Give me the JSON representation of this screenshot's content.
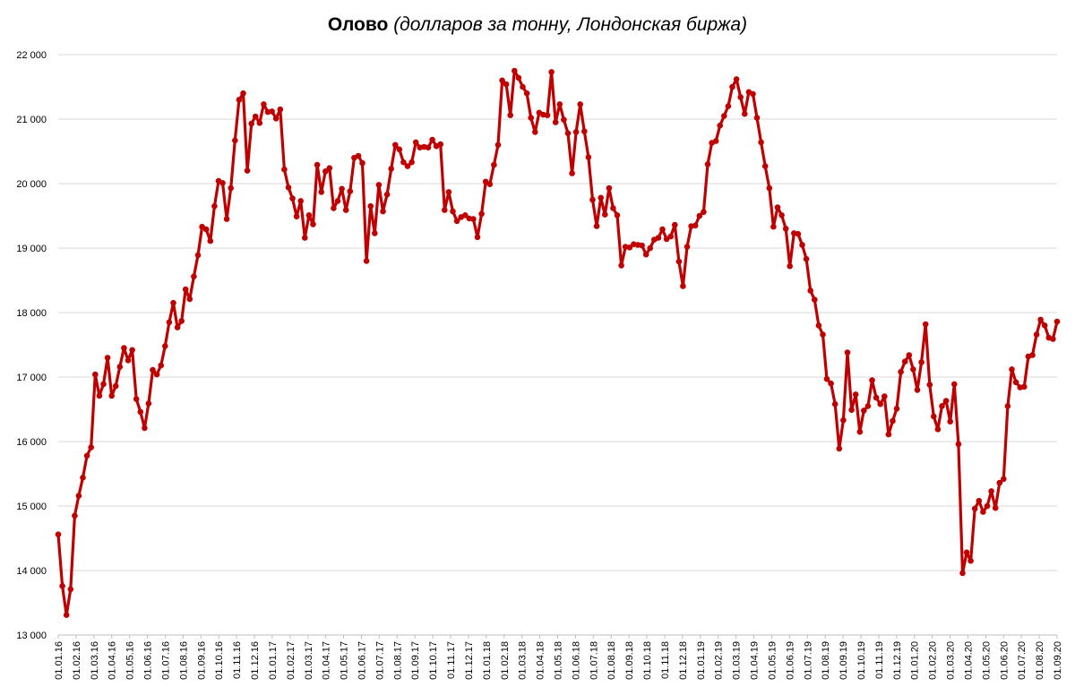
{
  "chart_data": {
    "type": "line",
    "title": "Олово",
    "subtitle": "(долларов за тонну, Лондонская биржа)",
    "ylim": [
      13000,
      22000
    ],
    "grid": true,
    "series_color": "#C00000",
    "y_ticks": [
      {
        "value": 13000,
        "label": "13 000"
      },
      {
        "value": 14000,
        "label": "14 000"
      },
      {
        "value": 15000,
        "label": "15 000"
      },
      {
        "value": 16000,
        "label": "16 000"
      },
      {
        "value": 17000,
        "label": "17 000"
      },
      {
        "value": 18000,
        "label": "18 000"
      },
      {
        "value": 19000,
        "label": "19 000"
      },
      {
        "value": 20000,
        "label": "20 000"
      },
      {
        "value": 21000,
        "label": "21 000"
      },
      {
        "value": 22000,
        "label": "22 000"
      }
    ],
    "x_ticks": [
      "01.01.16",
      "01.02.16",
      "01.03.16",
      "01.04.16",
      "01.05.16",
      "01.06.16",
      "01.07.16",
      "01.08.16",
      "01.09.16",
      "01.10.16",
      "01.11.16",
      "01.12.16",
      "01.01.17",
      "01.02.17",
      "01.03.17",
      "01.04.17",
      "01.05.17",
      "01.06.17",
      "01.07.17",
      "01.08.17",
      "01.09.17",
      "01.10.17",
      "01.11.17",
      "01.12.17",
      "01.01.18",
      "01.02.18",
      "01.03.18",
      "01.04.18",
      "01.05.18",
      "01.06.18",
      "01.07.18",
      "01.08.18",
      "01.09.18",
      "01.10.18",
      "01.11.18",
      "01.12.18",
      "01.01.19",
      "01.02.19",
      "01.03.19",
      "01.04.19",
      "01.05.19",
      "01.06.19",
      "01.07.19",
      "01.08.19",
      "01.09.19",
      "01.10.19",
      "01.11.19",
      "01.12.19",
      "01.01.20",
      "01.02.20",
      "01.03.20",
      "01.04.20",
      "01.05.20",
      "01.06.20",
      "01.07.20",
      "01.08.20",
      "01.09.20"
    ],
    "values": [
      14560,
      13760,
      13310,
      13710,
      14850,
      15160,
      15440,
      15780,
      15910,
      17040,
      16710,
      16890,
      17300,
      16710,
      16860,
      17160,
      17450,
      17260,
      17420,
      16660,
      16460,
      16210,
      16590,
      17110,
      17040,
      17180,
      17480,
      17850,
      18150,
      17770,
      17870,
      18360,
      18210,
      18560,
      18890,
      19330,
      19290,
      19110,
      19650,
      20040,
      20010,
      19450,
      19930,
      20670,
      21300,
      21400,
      20200,
      20930,
      21040,
      20940,
      21230,
      21110,
      21120,
      21010,
      21150,
      20220,
      19940,
      19770,
      19490,
      19730,
      19160,
      19510,
      19370,
      20290,
      19870,
      20190,
      20240,
      19620,
      19730,
      19920,
      19590,
      19880,
      20400,
      20430,
      20320,
      18800,
      19650,
      19230,
      19980,
      19570,
      19830,
      20230,
      20600,
      20530,
      20330,
      20270,
      20330,
      20640,
      20560,
      20570,
      20560,
      20680,
      20580,
      20610,
      19590,
      19870,
      19570,
      19420,
      19480,
      19510,
      19460,
      19450,
      19170,
      19530,
      20030,
      19990,
      20290,
      20600,
      21600,
      21540,
      21060,
      21750,
      21640,
      21500,
      21400,
      21020,
      20800,
      21100,
      21070,
      21060,
      21730,
      20950,
      21230,
      20990,
      20780,
      20160,
      20800,
      21230,
      20810,
      20410,
      19750,
      19340,
      19780,
      19520,
      19930,
      19620,
      19510,
      18730,
      19020,
      19010,
      19060,
      19050,
      19040,
      18900,
      19000,
      19130,
      19160,
      19290,
      19140,
      19180,
      19360,
      18790,
      18410,
      19020,
      19340,
      19350,
      19500,
      19560,
      20300,
      20630,
      20660,
      20900,
      21050,
      21200,
      21500,
      21620,
      21340,
      21080,
      21420,
      21390,
      21020,
      20640,
      20270,
      19930,
      19330,
      19630,
      19510,
      19300,
      18720,
      19230,
      19220,
      19050,
      18830,
      18340,
      18200,
      17800,
      17660,
      16970,
      16900,
      16580,
      15890,
      16330,
      17380,
      16490,
      16730,
      16150,
      16480,
      16550,
      16950,
      16680,
      16580,
      16700,
      16110,
      16320,
      16510,
      17080,
      17240,
      17340,
      17120,
      16800,
      17230,
      17820,
      16880,
      16390,
      16190,
      16550,
      16630,
      16310,
      16890,
      15960,
      13960,
      14280,
      14150,
      14960,
      15080,
      14910,
      15000,
      15230,
      14970,
      15360,
      15420,
      16550,
      17120,
      16920,
      16840,
      16850,
      17320,
      17340,
      17660,
      17890,
      17800,
      17610,
      17590,
      17860
    ]
  }
}
